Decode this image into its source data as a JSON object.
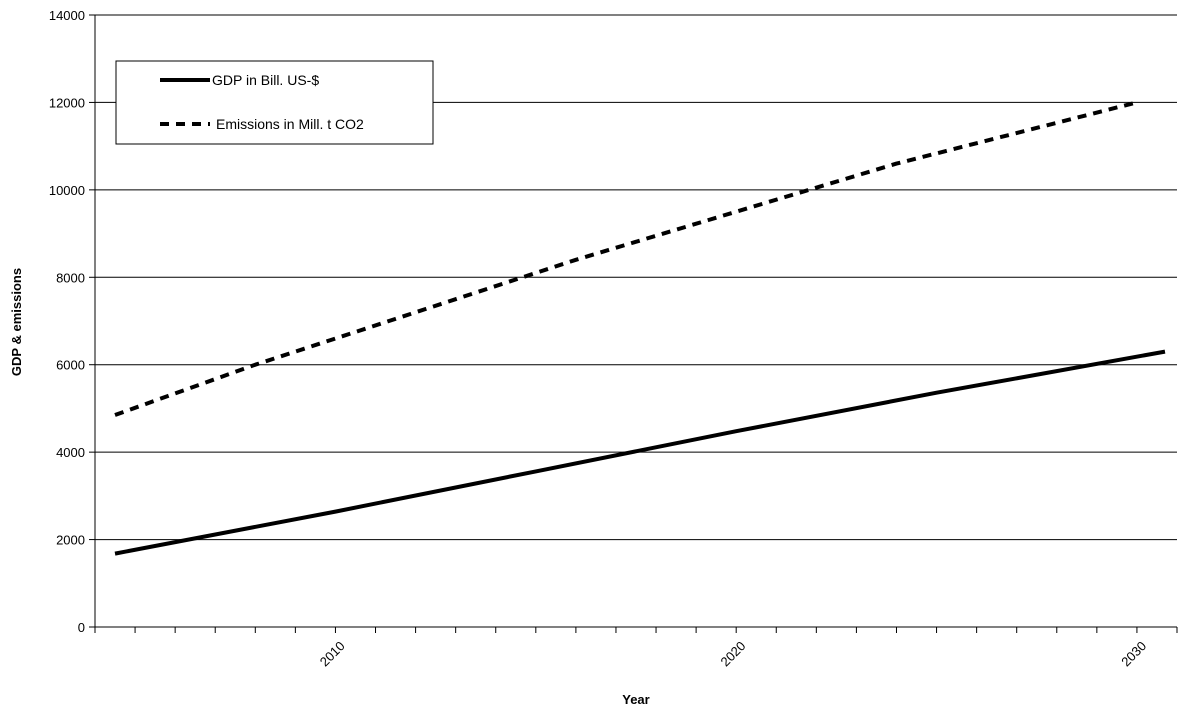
{
  "chart_data": {
    "type": "line",
    "title": "",
    "xlabel": "Year",
    "ylabel": "GDP & emissions",
    "xlim": [
      2004,
      2031
    ],
    "ylim": [
      0,
      14000
    ],
    "y_ticks": [
      0,
      2000,
      4000,
      6000,
      8000,
      10000,
      12000,
      14000
    ],
    "x_tick_labels": [
      2010,
      2020,
      2030
    ],
    "grid": "horizontal",
    "legend_position": "top-left",
    "series": [
      {
        "name": "GDP in Bill. US-$",
        "style": "solid",
        "color": "#000000",
        "x": [
          2004.5,
          2010,
          2015,
          2020,
          2025,
          2030.7
        ],
        "values": [
          1680,
          2640,
          3560,
          4480,
          5360,
          6300
        ]
      },
      {
        "name": "Emissions in Mill. t CO2",
        "style": "dashed",
        "color": "#000000",
        "x": [
          2004.5,
          2008,
          2012,
          2016,
          2020,
          2024,
          2030
        ],
        "values": [
          4850,
          6000,
          7200,
          8400,
          9500,
          10600,
          12000
        ]
      }
    ]
  }
}
